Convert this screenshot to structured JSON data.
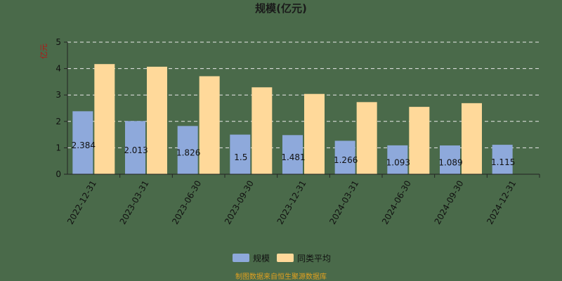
{
  "chart_data": {
    "type": "bar",
    "title": "规模(亿元)",
    "ylabel": "亿元",
    "ylim": [
      0,
      5
    ],
    "yticks": [
      0,
      1,
      2,
      3,
      4,
      5
    ],
    "grid": true,
    "legend_position": "bottom",
    "categories": [
      "2022-12-31",
      "2023-03-31",
      "2023-06-30",
      "2023-09-30",
      "2023-12-31",
      "2024-03-31",
      "2024-06-30",
      "2024-09-30",
      "2024-12-31"
    ],
    "series": [
      {
        "name": "规模",
        "color": "#8ea9db",
        "values": [
          2.384,
          2.013,
          1.826,
          1.5,
          1.481,
          1.266,
          1.093,
          1.089,
          1.115
        ],
        "labels": [
          "2.384",
          "2.013",
          "1.826",
          "1.5",
          "1.481",
          "1.266",
          "1.093",
          "1.089",
          "1.115"
        ]
      },
      {
        "name": "同类平均",
        "color": "#ffd99a",
        "values": [
          4.17,
          4.07,
          3.71,
          3.29,
          3.04,
          2.73,
          2.55,
          2.69,
          null
        ]
      }
    ],
    "footer": "制图数据来自恒生聚源数据库"
  }
}
